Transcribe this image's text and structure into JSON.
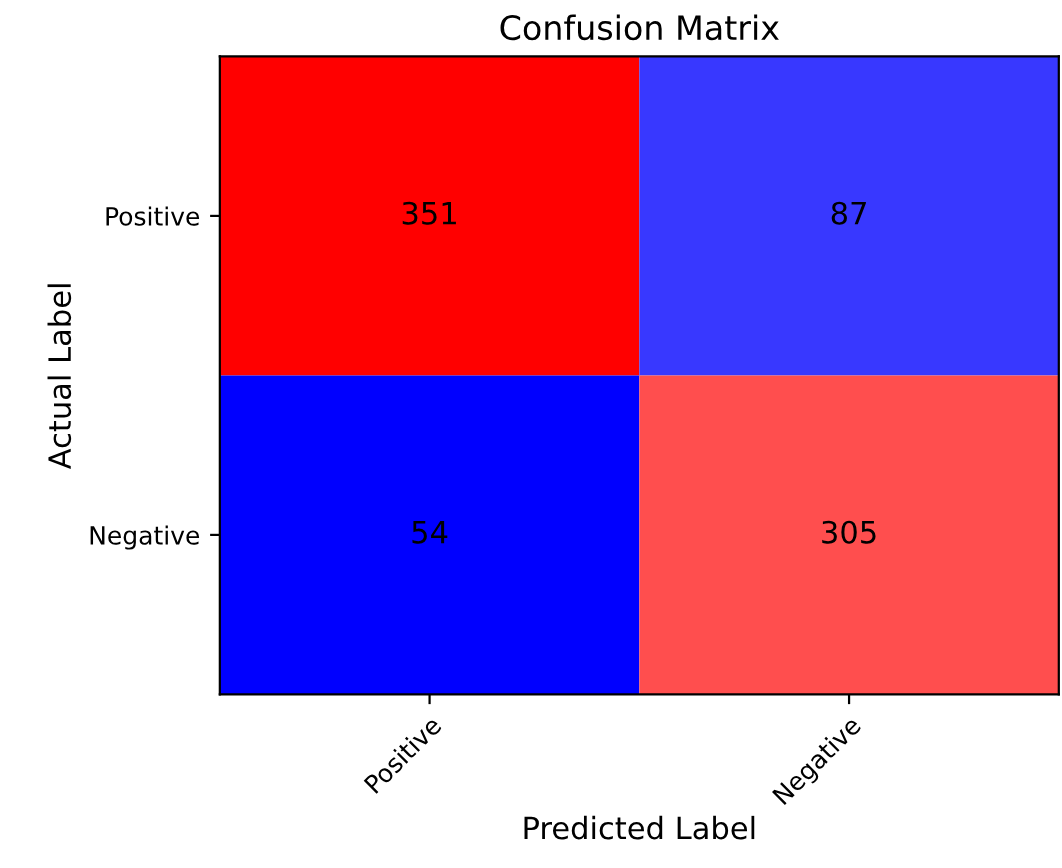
{
  "chart_data": {
    "type": "heatmap",
    "title": "Confusion Matrix",
    "xlabel": "Predicted Label",
    "ylabel": "Actual Label",
    "categories": [
      "Positive",
      "Negative"
    ],
    "y_categories": [
      "Positive",
      "Negative"
    ],
    "cells": [
      [
        351,
        87
      ],
      [
        54,
        305
      ]
    ],
    "data_labels": true
  }
}
